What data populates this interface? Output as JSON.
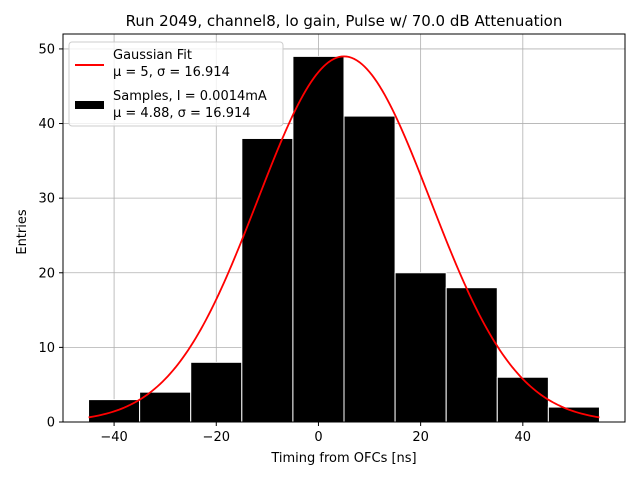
{
  "chart_data": {
    "type": "bar",
    "title": "Run 2049, channel8, lo gain, Pulse w/ 70.0 dB Attenuation",
    "xlabel": "Timing from OFCs [ns]",
    "ylabel": "Entries",
    "xlim": [
      -50,
      60
    ],
    "ylim": [
      0,
      52
    ],
    "xticks": [
      -40,
      -20,
      0,
      20,
      40
    ],
    "yticks": [
      0,
      10,
      20,
      30,
      40,
      50
    ],
    "grid": true,
    "legend_position": "top-left",
    "histogram": {
      "name": "Samples",
      "bin_edges": [
        -45,
        -35,
        -25,
        -15,
        -5,
        5,
        15,
        25,
        35,
        45,
        55
      ],
      "counts": [
        3,
        4,
        8,
        38,
        49,
        41,
        20,
        18,
        6,
        2
      ],
      "color": "#000000",
      "edge_color": "#ffffff"
    },
    "fit": {
      "name": "Gaussian Fit",
      "type": "gaussian",
      "mu": 5,
      "sigma": 16.914,
      "amplitude": 49,
      "x_range": [
        -45,
        55
      ],
      "color": "#ff0000"
    },
    "legend": [
      {
        "kind": "line",
        "color": "#ff0000",
        "line1": "Gaussian Fit",
        "line2": "μ = 5, σ = 16.914"
      },
      {
        "kind": "patch",
        "color": "#000000",
        "line1": "Samples, I = 0.0014mA",
        "line2": "μ = 4.88, σ = 16.914"
      }
    ]
  }
}
